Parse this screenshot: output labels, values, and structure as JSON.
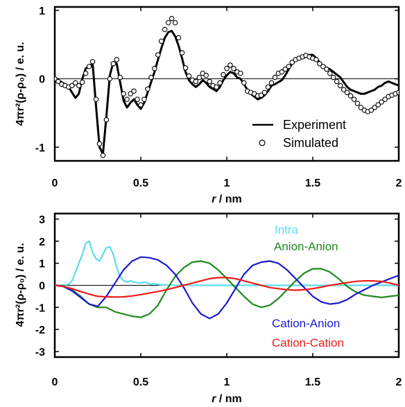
{
  "chart_data": [
    {
      "type": "line",
      "xlabel_var": "r",
      "xlabel_unit": " / nm",
      "ylabel": "4πr²(ρ-ρ₀) / e. u.",
      "xlim": [
        0,
        2
      ],
      "ylim": [
        -1.2,
        1.05
      ],
      "xticks": [
        0,
        0.5,
        1,
        1.5,
        2
      ],
      "xtick_labels": [
        "0",
        "0.5",
        "1",
        "1.5",
        "2"
      ],
      "yticks": [
        -1,
        0,
        1
      ],
      "ytick_labels": [
        "-1",
        "0",
        "1"
      ],
      "legend_position": "bottom-right",
      "zero_line": true,
      "series": [
        {
          "name": "Experiment",
          "style": "line",
          "color": "#000000",
          "x": [
            0,
            0.04,
            0.08,
            0.1,
            0.12,
            0.14,
            0.16,
            0.18,
            0.2,
            0.22,
            0.24,
            0.26,
            0.28,
            0.3,
            0.32,
            0.34,
            0.36,
            0.38,
            0.4,
            0.42,
            0.44,
            0.46,
            0.48,
            0.5,
            0.52,
            0.54,
            0.56,
            0.58,
            0.6,
            0.62,
            0.64,
            0.66,
            0.68,
            0.7,
            0.72,
            0.74,
            0.76,
            0.78,
            0.8,
            0.82,
            0.84,
            0.86,
            0.88,
            0.9,
            0.92,
            0.94,
            0.96,
            0.98,
            1.0,
            1.02,
            1.04,
            1.06,
            1.08,
            1.1,
            1.12,
            1.14,
            1.16,
            1.18,
            1.2,
            1.22,
            1.24,
            1.26,
            1.28,
            1.3,
            1.32,
            1.34,
            1.36,
            1.38,
            1.4,
            1.42,
            1.44,
            1.46,
            1.48,
            1.5,
            1.52,
            1.54,
            1.56,
            1.58,
            1.6,
            1.62,
            1.64,
            1.66,
            1.68,
            1.7,
            1.72,
            1.74,
            1.76,
            1.78,
            1.8,
            1.82,
            1.84,
            1.86,
            1.88,
            1.9,
            1.92,
            1.94,
            1.96,
            1.98,
            2.0
          ],
          "y": [
            0.0,
            -0.05,
            -0.12,
            -0.2,
            -0.28,
            -0.22,
            0.0,
            0.15,
            0.18,
            0.22,
            -0.4,
            -1.0,
            -1.1,
            -0.55,
            0.05,
            0.24,
            0.22,
            -0.05,
            -0.32,
            -0.42,
            -0.35,
            -0.3,
            -0.38,
            -0.44,
            -0.35,
            -0.2,
            -0.05,
            0.1,
            0.28,
            0.45,
            0.6,
            0.68,
            0.7,
            0.62,
            0.48,
            0.3,
            0.1,
            -0.02,
            -0.08,
            -0.12,
            -0.08,
            -0.02,
            -0.06,
            -0.12,
            -0.15,
            -0.18,
            -0.12,
            -0.02,
            0.05,
            0.1,
            0.08,
            0.02,
            0.0,
            -0.08,
            -0.16,
            -0.22,
            -0.26,
            -0.3,
            -0.28,
            -0.24,
            -0.18,
            -0.1,
            -0.08,
            -0.05,
            -0.02,
            0.05,
            0.14,
            0.22,
            0.28,
            0.32,
            0.3,
            0.32,
            0.35,
            0.35,
            0.3,
            0.24,
            0.18,
            0.16,
            0.14,
            0.1,
            0.06,
            0.02,
            -0.05,
            -0.12,
            -0.16,
            -0.18,
            -0.2,
            -0.22,
            -0.22,
            -0.2,
            -0.18,
            -0.16,
            -0.12,
            -0.1,
            -0.06,
            -0.04,
            -0.06,
            -0.08,
            -0.1
          ]
        },
        {
          "name": "Simulated",
          "style": "markers",
          "color": "#000000",
          "x": [
            0,
            0.02,
            0.04,
            0.06,
            0.08,
            0.1,
            0.12,
            0.14,
            0.16,
            0.18,
            0.2,
            0.22,
            0.24,
            0.26,
            0.28,
            0.3,
            0.32,
            0.34,
            0.36,
            0.38,
            0.4,
            0.42,
            0.44,
            0.46,
            0.48,
            0.5,
            0.52,
            0.54,
            0.56,
            0.58,
            0.6,
            0.62,
            0.64,
            0.66,
            0.68,
            0.7,
            0.72,
            0.74,
            0.76,
            0.78,
            0.8,
            0.82,
            0.84,
            0.86,
            0.88,
            0.9,
            0.92,
            0.94,
            0.96,
            0.98,
            1.0,
            1.02,
            1.04,
            1.06,
            1.08,
            1.1,
            1.12,
            1.14,
            1.16,
            1.18,
            1.2,
            1.22,
            1.24,
            1.26,
            1.28,
            1.3,
            1.32,
            1.34,
            1.36,
            1.38,
            1.4,
            1.42,
            1.44,
            1.46,
            1.48,
            1.5,
            1.52,
            1.54,
            1.56,
            1.58,
            1.6,
            1.62,
            1.64,
            1.66,
            1.68,
            1.7,
            1.72,
            1.74,
            1.76,
            1.78,
            1.8,
            1.82,
            1.84,
            1.86,
            1.88,
            1.9,
            1.92,
            1.94,
            1.96,
            1.98,
            2.0
          ],
          "y": [
            0.0,
            -0.04,
            -0.08,
            -0.1,
            -0.12,
            -0.1,
            -0.06,
            -0.1,
            -0.05,
            0.08,
            0.18,
            0.25,
            -0.3,
            -0.95,
            -1.12,
            -0.6,
            0.0,
            0.22,
            0.28,
            0.02,
            -0.22,
            -0.3,
            -0.22,
            -0.18,
            -0.3,
            -0.38,
            -0.3,
            -0.15,
            0.02,
            0.15,
            0.35,
            0.55,
            0.72,
            0.82,
            0.88,
            0.82,
            0.6,
            0.38,
            0.16,
            0.04,
            -0.02,
            -0.04,
            0.02,
            0.08,
            0.05,
            -0.04,
            -0.1,
            -0.12,
            -0.06,
            0.06,
            0.15,
            0.2,
            0.15,
            0.1,
            0.08,
            -0.06,
            -0.18,
            -0.2,
            -0.22,
            -0.25,
            -0.24,
            -0.2,
            -0.12,
            -0.06,
            0.02,
            0.08,
            0.1,
            0.14,
            0.18,
            0.24,
            0.28,
            0.3,
            0.32,
            0.34,
            0.32,
            0.3,
            0.28,
            0.22,
            0.18,
            0.14,
            0.08,
            0.02,
            -0.04,
            -0.1,
            -0.16,
            -0.2,
            -0.25,
            -0.3,
            -0.36,
            -0.42,
            -0.46,
            -0.48,
            -0.46,
            -0.42,
            -0.38,
            -0.34,
            -0.3,
            -0.26,
            -0.24,
            -0.22,
            -0.2
          ]
        }
      ]
    },
    {
      "type": "line",
      "xlabel_var": "r",
      "xlabel_unit": " / nm",
      "ylabel": "4πr²(ρ-ρ₀) / e. u.",
      "xlim": [
        0,
        2
      ],
      "ylim": [
        -3.25,
        3.25
      ],
      "xticks": [
        0,
        0.5,
        1,
        1.5,
        2
      ],
      "xtick_labels": [
        "0",
        "0.5",
        "1",
        "1.5",
        "2"
      ],
      "yticks": [
        -3,
        -2,
        -1,
        0,
        1,
        2,
        3
      ],
      "ytick_labels": [
        "-3",
        "-2",
        "-1",
        "0",
        "1",
        "2",
        "3"
      ],
      "zero_line": true,
      "series": [
        {
          "name": "Intra",
          "color": "#5cdcf0",
          "x": [
            0,
            0.05,
            0.08,
            0.1,
            0.12,
            0.14,
            0.16,
            0.18,
            0.2,
            0.22,
            0.24,
            0.26,
            0.28,
            0.3,
            0.32,
            0.34,
            0.36,
            0.38,
            0.4,
            0.42,
            0.44,
            0.46,
            0.48,
            0.5,
            0.52,
            0.54,
            0.56,
            0.58,
            0.6,
            0.62,
            0.64,
            0.66,
            0.68,
            0.7,
            2.0
          ],
          "y": [
            0,
            0,
            0.05,
            0.2,
            0.6,
            1.0,
            1.4,
            1.9,
            2.0,
            1.5,
            1.2,
            1.1,
            1.4,
            1.7,
            1.75,
            1.4,
            0.8,
            0.4,
            0.2,
            0.15,
            0.2,
            0.15,
            0.12,
            0.1,
            0.15,
            0.1,
            0.05,
            0.08,
            0.04,
            0.02,
            0.02,
            0.01,
            0.01,
            0,
            0
          ]
        },
        {
          "name": "Anion-Anion",
          "color": "#1e8a1e",
          "x": [
            0,
            0.05,
            0.1,
            0.15,
            0.2,
            0.25,
            0.3,
            0.35,
            0.4,
            0.45,
            0.5,
            0.55,
            0.6,
            0.65,
            0.7,
            0.75,
            0.8,
            0.85,
            0.9,
            0.95,
            1.0,
            1.05,
            1.1,
            1.15,
            1.2,
            1.25,
            1.3,
            1.35,
            1.4,
            1.45,
            1.5,
            1.55,
            1.6,
            1.65,
            1.7,
            1.75,
            1.8,
            1.85,
            1.9,
            1.95,
            2.0
          ],
          "y": [
            0,
            -0.02,
            -0.2,
            -0.5,
            -0.85,
            -1.0,
            -1.0,
            -1.2,
            -1.3,
            -1.4,
            -1.45,
            -1.3,
            -0.9,
            -0.2,
            0.4,
            0.8,
            1.05,
            1.1,
            1.0,
            0.7,
            0.3,
            -0.1,
            -0.5,
            -0.85,
            -1.0,
            -0.9,
            -0.6,
            -0.2,
            0.2,
            0.55,
            0.75,
            0.75,
            0.6,
            0.3,
            -0.05,
            -0.3,
            -0.45,
            -0.5,
            -0.55,
            -0.5,
            -0.45
          ]
        },
        {
          "name": "Cation-Anion",
          "color": "#1a1ad0",
          "x": [
            0,
            0.05,
            0.1,
            0.15,
            0.2,
            0.25,
            0.3,
            0.35,
            0.4,
            0.45,
            0.5,
            0.55,
            0.6,
            0.65,
            0.7,
            0.75,
            0.8,
            0.85,
            0.9,
            0.95,
            1.0,
            1.05,
            1.1,
            1.15,
            1.2,
            1.25,
            1.3,
            1.35,
            1.4,
            1.45,
            1.5,
            1.55,
            1.6,
            1.65,
            1.7,
            1.75,
            1.8,
            1.85,
            1.9,
            1.95,
            2.0
          ],
          "y": [
            0,
            -0.05,
            -0.25,
            -0.55,
            -0.85,
            -0.95,
            -0.5,
            0.1,
            0.7,
            1.1,
            1.28,
            1.25,
            1.15,
            0.9,
            0.5,
            -0.1,
            -0.8,
            -1.3,
            -1.5,
            -1.3,
            -0.8,
            -0.15,
            0.5,
            0.9,
            1.05,
            1.1,
            1.0,
            0.7,
            0.3,
            -0.1,
            -0.5,
            -0.75,
            -0.85,
            -0.8,
            -0.65,
            -0.4,
            -0.2,
            0.0,
            0.15,
            0.3,
            0.45
          ]
        },
        {
          "name": "Cation-Cation",
          "color": "#ee1c1c",
          "x": [
            0,
            0.05,
            0.1,
            0.15,
            0.2,
            0.25,
            0.3,
            0.35,
            0.4,
            0.45,
            0.5,
            0.55,
            0.6,
            0.65,
            0.7,
            0.75,
            0.8,
            0.85,
            0.9,
            0.95,
            1.0,
            1.05,
            1.1,
            1.15,
            1.2,
            1.25,
            1.3,
            1.35,
            1.4,
            1.45,
            1.5,
            1.55,
            1.6,
            1.65,
            1.7,
            1.75,
            1.8,
            1.85,
            1.9,
            1.95,
            2.0
          ],
          "y": [
            0,
            -0.05,
            -0.15,
            -0.28,
            -0.4,
            -0.5,
            -0.52,
            -0.53,
            -0.52,
            -0.48,
            -0.42,
            -0.35,
            -0.28,
            -0.2,
            -0.1,
            0.0,
            0.1,
            0.2,
            0.3,
            0.35,
            0.35,
            0.3,
            0.2,
            0.1,
            0.0,
            -0.1,
            -0.15,
            -0.2,
            -0.22,
            -0.2,
            -0.15,
            -0.08,
            0.0,
            0.06,
            0.12,
            0.18,
            0.2,
            0.2,
            0.18,
            0.1,
            0.0
          ]
        }
      ]
    }
  ]
}
